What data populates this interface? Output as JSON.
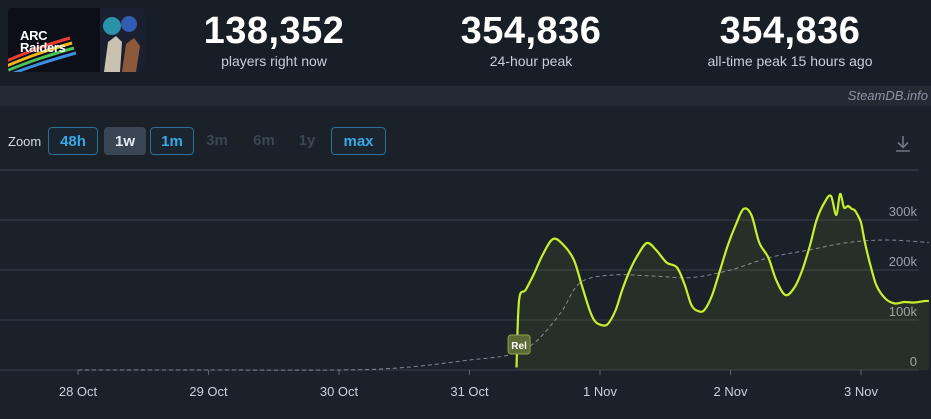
{
  "game": {
    "title": "ARC Raiders",
    "title_line1": "ARC",
    "title_line2": "Raiders"
  },
  "stats": [
    {
      "value": "138,352",
      "label": "players right now"
    },
    {
      "value": "354,836",
      "label": "24-hour peak"
    },
    {
      "value": "354,836",
      "label": "all-time peak 15 hours ago"
    }
  ],
  "credit": "SteamDB.info",
  "zoom": {
    "label": "Zoom",
    "options": [
      {
        "label": "48h",
        "state": "on"
      },
      {
        "label": "1w",
        "state": "sel"
      },
      {
        "label": "1m",
        "state": "on"
      },
      {
        "label": "3m",
        "state": "off"
      },
      {
        "label": "6m",
        "state": "off"
      },
      {
        "label": "1y",
        "state": "off"
      },
      {
        "label": "max",
        "state": "on"
      }
    ]
  },
  "icons": {
    "download": "download-icon"
  },
  "chart_data": {
    "type": "line",
    "x_tick_labels": [
      "28 Oct",
      "29 Oct",
      "30 Oct",
      "31 Oct",
      "1 Nov",
      "2 Nov",
      "3 Nov"
    ],
    "y_tick_labels": [
      "0",
      "100k",
      "200k",
      "300k"
    ],
    "ylim": [
      0,
      400000
    ],
    "grid": true,
    "annotation": {
      "label": "Rel"
    },
    "series": [
      {
        "color": "#c6f02b",
        "style": "solid",
        "fill": true,
        "x": [
          3.36,
          3.38,
          3.43,
          3.49,
          3.56,
          3.64,
          3.72,
          3.8,
          3.86,
          3.92,
          3.96,
          4.01,
          4.06,
          4.12,
          4.17,
          4.23,
          4.29,
          4.36,
          4.43,
          4.51,
          4.59,
          4.65,
          4.7,
          4.75,
          4.8,
          4.86,
          4.92,
          4.98,
          5.04,
          5.1,
          5.16,
          5.22,
          5.29,
          5.35,
          5.42,
          5.49,
          5.55,
          5.61,
          5.66,
          5.72,
          5.77,
          5.81,
          5.84,
          5.87,
          5.9,
          5.93,
          5.95,
          5.97,
          6.0,
          6.03,
          6.07,
          6.12,
          6.19,
          6.26,
          6.33,
          6.41,
          6.49,
          6.52
        ],
        "y": [
          5000,
          140000,
          160000,
          190000,
          230000,
          262000,
          250000,
          220000,
          170000,
          120000,
          98000,
          90000,
          92000,
          120000,
          160000,
          200000,
          230000,
          254000,
          240000,
          215000,
          205000,
          170000,
          130000,
          118000,
          120000,
          150000,
          200000,
          250000,
          290000,
          322000,
          310000,
          255000,
          225000,
          180000,
          150000,
          165000,
          200000,
          250000,
          300000,
          335000,
          348000,
          310000,
          352000,
          325000,
          328000,
          322000,
          320000,
          312000,
          295000,
          255000,
          212000,
          168000,
          142000,
          133000,
          136000,
          135000,
          138000,
          138000
        ]
      },
      {
        "color": "#7f8a96",
        "style": "dashed",
        "x": [
          0,
          1,
          2,
          2.5,
          3,
          3.3,
          3.5,
          3.7,
          3.85,
          4.1,
          4.4,
          4.7,
          5.0,
          5.3,
          5.6,
          5.9,
          6.2,
          6.52
        ],
        "y": [
          0,
          0,
          0,
          5000,
          20000,
          30000,
          55000,
          115000,
          175000,
          190000,
          188000,
          185000,
          200000,
          225000,
          240000,
          255000,
          260000,
          255000
        ]
      }
    ]
  }
}
